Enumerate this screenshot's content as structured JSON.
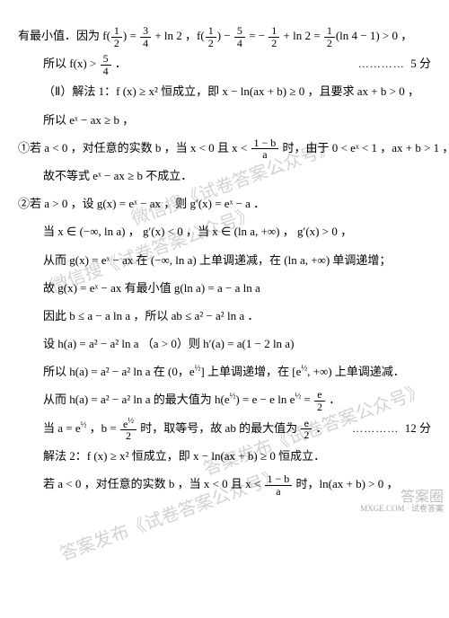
{
  "lines": {
    "l1a": "有最小值．因为 f(",
    "l1b": ") = ",
    "l1c": " + ln 2 ，f(",
    "l1d": ") − ",
    "l1e": " = − ",
    "l1f": " + ln 2 = ",
    "l1g": "(ln 4 − 1) > 0 ，",
    "l2a": "所以 f(x) > ",
    "l2b": " ．",
    "score1": "5 分",
    "l3": "（Ⅱ）解法 1：f (x) ≥ x² 恒成立，即 x − ln(ax + b) ≥ 0 ，且要求 ax + b > 0 ，",
    "l4": "所以 eˣ − ax ≥ b ，",
    "l5a": "①若 a < 0 ，对任意的实数 b ，当 x < 0 且 x < ",
    "l5b": " 时，由于 0 < eˣ < 1 ，ax + b > 1 ，",
    "l6": "故不等式 eˣ − ax ≥ b 不成立．",
    "l7": "②若 a > 0 ，设 g(x) = eˣ − ax ，则 g′(x) = eˣ − a ．",
    "l8": "当 x ∈ (−∞, ln a) ， g′(x) < 0 ，当 x ∈ (ln a, +∞) ， g′(x) > 0 ，",
    "l9": "从而 g(x) = eˣ − ax 在 (−∞, ln a) 上单调递减，在 (ln a, +∞) 单调递增；",
    "l10": "故 g(x) = eˣ − ax 有最小值 g(ln a) = a − a ln a",
    "l11": "因此 b ≤ a − a ln a ，所以 ab ≤ a² − a² ln a ．",
    "l12": "设 h(a) = a² − a² ln a （a > 0）则 h′(a) = a(1 − 2 ln a)",
    "l13a": "所以 h(a) = a² − a² ln a 在 (0，e",
    "l13b": "] 上单调递增，在 [e",
    "l13c": ", +∞) 上单调递减．",
    "l14a": "从而 h(a) = a² − a² ln a 的最大值为 h(e",
    "l14b": ") = e − e ln e",
    "l14c": " = ",
    "l14d": " ．",
    "l15a": "当 a = e",
    "l15b": " ，b = ",
    "l15c": " 时，取等号，故 ab 的最大值为 ",
    "l15d": " ．",
    "score2": "12 分",
    "l16": "解法 2：f (x) ≥ x² 恒成立，即 x − ln(ax + b) ≥ 0 恒成立．",
    "l17a": "若 a < 0 ，对任意的实数 b ，当 x < 0 且 x < ",
    "l17b": " 时，ln(ax + b) > 0 ，"
  },
  "fracs": {
    "half": {
      "num": "1",
      "den": "2"
    },
    "threeFour": {
      "num": "3",
      "den": "4"
    },
    "fiveFour": {
      "num": "5",
      "den": "4"
    },
    "oneMinusBOverA": {
      "num": "1 − b",
      "den": "a"
    },
    "eOver2": {
      "num": "e",
      "den": "2"
    },
    "eHalfOver2": {
      "num": "e^{1/2}",
      "den": "2"
    }
  },
  "sup": {
    "half": "½"
  },
  "watermarks": {
    "w1": "微信搜《试卷答案公众号》",
    "w2": "微信搜《试卷答案公众号》",
    "w3": "答案发布《试卷答案公众号》",
    "w4": "答案发布《试卷答案公众号》"
  },
  "corner": {
    "big": "答案圈",
    "small": "MXGE.COM · 试卷答案"
  },
  "dots": "…………"
}
